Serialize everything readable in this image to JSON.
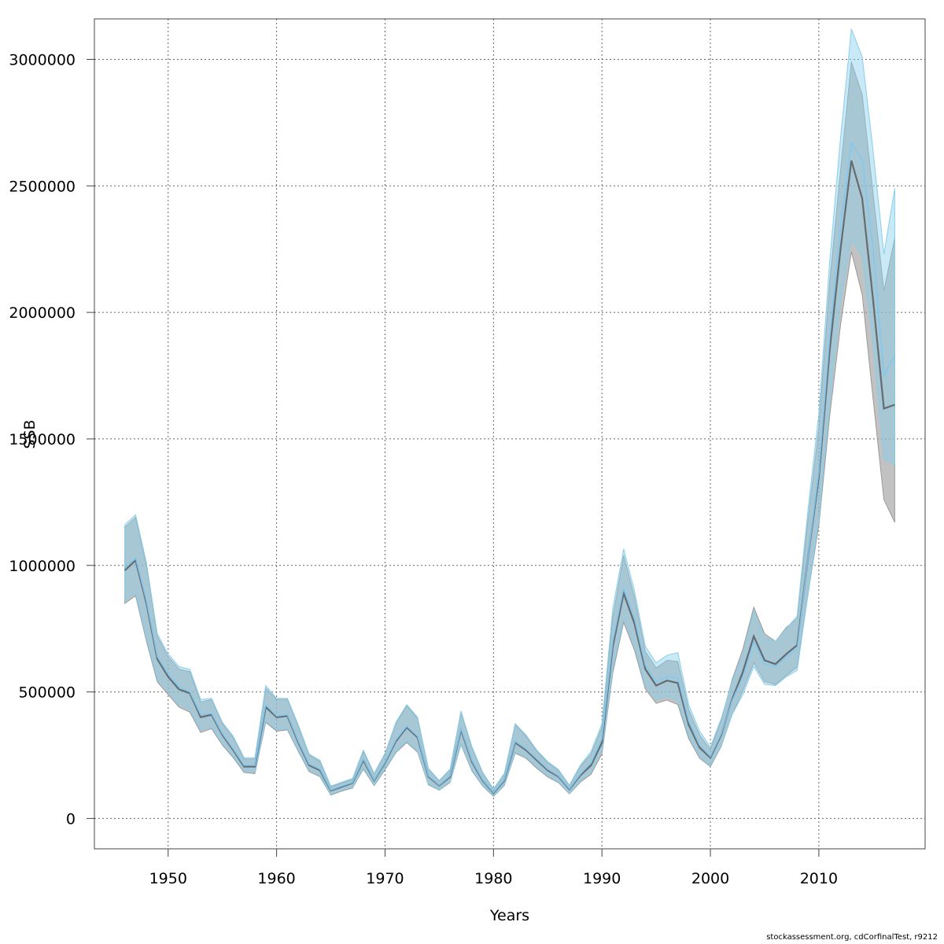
{
  "chart_data": {
    "type": "line",
    "xlabel": "Years",
    "ylabel": "SSB",
    "xlim": [
      1943.2,
      2019.8
    ],
    "ylim": [
      -120000,
      3160000
    ],
    "xticks": [
      1950,
      1960,
      1970,
      1980,
      1990,
      2000,
      2010
    ],
    "yticks": [
      0,
      500000,
      1000000,
      1500000,
      2000000,
      2500000,
      3000000
    ],
    "grid": true,
    "x": [
      1946,
      1947,
      1948,
      1949,
      1950,
      1951,
      1952,
      1953,
      1954,
      1955,
      1956,
      1957,
      1958,
      1959,
      1960,
      1961,
      1962,
      1963,
      1964,
      1965,
      1966,
      1967,
      1968,
      1969,
      1970,
      1971,
      1972,
      1973,
      1974,
      1975,
      1976,
      1977,
      1978,
      1979,
      1980,
      1981,
      1982,
      1983,
      1984,
      1985,
      1986,
      1987,
      1988,
      1989,
      1990,
      1991,
      1992,
      1993,
      1994,
      1995,
      1996,
      1997,
      1998,
      1999,
      2000,
      2001,
      2002,
      2003,
      2004,
      2005,
      2006,
      2007,
      2008,
      2009,
      2010,
      2011,
      2012,
      2013,
      2014,
      2015,
      2016,
      2017
    ],
    "series": [
      {
        "color": "#555555",
        "band_color": "#9a9a9a",
        "values": [
          980000,
          1020000,
          850000,
          630000,
          560000,
          510000,
          495000,
          400000,
          410000,
          330000,
          270000,
          205000,
          205000,
          440000,
          400000,
          405000,
          300000,
          210000,
          190000,
          110000,
          125000,
          140000,
          230000,
          150000,
          220000,
          305000,
          360000,
          320000,
          165000,
          130000,
          165000,
          350000,
          225000,
          150000,
          100000,
          150000,
          300000,
          270000,
          230000,
          190000,
          165000,
          115000,
          170000,
          210000,
          300000,
          680000,
          890000,
          770000,
          590000,
          525000,
          545000,
          535000,
          370000,
          280000,
          240000,
          330000,
          470000,
          580000,
          720000,
          625000,
          610000,
          650000,
          685000,
          1030000,
          1350000,
          1850000,
          2250000,
          2600000,
          2450000,
          2050000,
          1620000,
          1635000
        ],
        "lower": [
          850000,
          880000,
          700000,
          540000,
          490000,
          440000,
          420000,
          340000,
          355000,
          290000,
          240000,
          182000,
          177000,
          380000,
          345000,
          350000,
          265000,
          185000,
          165000,
          92000,
          108000,
          120000,
          195000,
          130000,
          192000,
          260000,
          300000,
          262000,
          133000,
          112000,
          142000,
          292000,
          189000,
          128000,
          87000,
          130000,
          258000,
          238000,
          198000,
          164000,
          141000,
          97000,
          143000,
          175000,
          255000,
          575000,
          775000,
          665000,
          512000,
          455000,
          468000,
          450000,
          315000,
          238000,
          205000,
          285000,
          410000,
          505000,
          615000,
          540000,
          530000,
          565000,
          598000,
          885000,
          1160000,
          1590000,
          1950000,
          2240000,
          2070000,
          1660000,
          1260000,
          1170000
        ],
        "upper": [
          1150000,
          1190000,
          1000000,
          720000,
          640000,
          590000,
          580000,
          460000,
          470000,
          375000,
          320000,
          235000,
          235000,
          515000,
          470000,
          470000,
          365000,
          250000,
          225000,
          125000,
          140000,
          155000,
          265000,
          175000,
          255000,
          375000,
          445000,
          395000,
          195000,
          148000,
          192000,
          420000,
          280000,
          180000,
          115000,
          175000,
          370000,
          325000,
          265000,
          220000,
          190000,
          130000,
          205000,
          255000,
          360000,
          795000,
          1040000,
          875000,
          660000,
          595000,
          625000,
          620000,
          430000,
          330000,
          272000,
          388000,
          548000,
          670000,
          835000,
          730000,
          700000,
          755000,
          790000,
          1180000,
          1545000,
          2120000,
          2560000,
          2990000,
          2860000,
          2470000,
          2085000,
          2295000
        ]
      },
      {
        "color": "#7fc8f2",
        "band_color": "#87ceeb",
        "values": [
          990000,
          1030000,
          860000,
          640000,
          570000,
          520000,
          500000,
          410000,
          415000,
          335000,
          275000,
          210000,
          210000,
          450000,
          405000,
          410000,
          305000,
          215000,
          195000,
          112000,
          128000,
          142000,
          235000,
          152000,
          223000,
          310000,
          365000,
          325000,
          168000,
          132000,
          168000,
          355000,
          230000,
          153000,
          102000,
          153000,
          305000,
          275000,
          235000,
          195000,
          168000,
          117000,
          175000,
          220000,
          315000,
          700000,
          910000,
          790000,
          605000,
          540000,
          560000,
          555000,
          385000,
          290000,
          245000,
          335000,
          465000,
          560000,
          700000,
          610000,
          600000,
          640000,
          670000,
          1030000,
          1370000,
          1900000,
          2340000,
          2670000,
          2600000,
          2250000,
          1750000,
          1830000
        ],
        "lower": [
          860000,
          890000,
          710000,
          550000,
          500000,
          450000,
          430000,
          350000,
          362000,
          295000,
          245000,
          187000,
          182000,
          388000,
          350000,
          355000,
          270000,
          190000,
          170000,
          95000,
          111000,
          123000,
          200000,
          133000,
          196000,
          265000,
          305000,
          267000,
          136000,
          114000,
          145000,
          297000,
          194000,
          131000,
          89000,
          133000,
          263000,
          243000,
          203000,
          168000,
          144000,
          99000,
          148000,
          183000,
          268000,
          590000,
          790000,
          680000,
          524000,
          468000,
          482000,
          466000,
          326000,
          246000,
          210000,
          290000,
          410000,
          490000,
          600000,
          530000,
          525000,
          560000,
          585000,
          885000,
          1180000,
          1640000,
          2040000,
          2290000,
          2220000,
          1880000,
          1420000,
          1400000
        ],
        "upper": [
          1160000,
          1200000,
          1010000,
          730000,
          650000,
          600000,
          590000,
          470000,
          475000,
          380000,
          325000,
          240000,
          240000,
          525000,
          475000,
          475000,
          370000,
          255000,
          230000,
          128000,
          143000,
          158000,
          270000,
          178000,
          258000,
          380000,
          450000,
          400000,
          198000,
          150000,
          195000,
          425000,
          285000,
          183000,
          117000,
          178000,
          375000,
          330000,
          270000,
          225000,
          193000,
          132000,
          210000,
          265000,
          375000,
          830000,
          1065000,
          900000,
          680000,
          615000,
          645000,
          655000,
          450000,
          345000,
          282000,
          395000,
          540000,
          650000,
          820000,
          715000,
          700000,
          750000,
          800000,
          1220000,
          1600000,
          2200000,
          2690000,
          3120000,
          3010000,
          2640000,
          2230000,
          2490000
        ]
      }
    ]
  },
  "footer": {
    "text": "stockassessment.org, cdCorfinalTest, r9212"
  }
}
